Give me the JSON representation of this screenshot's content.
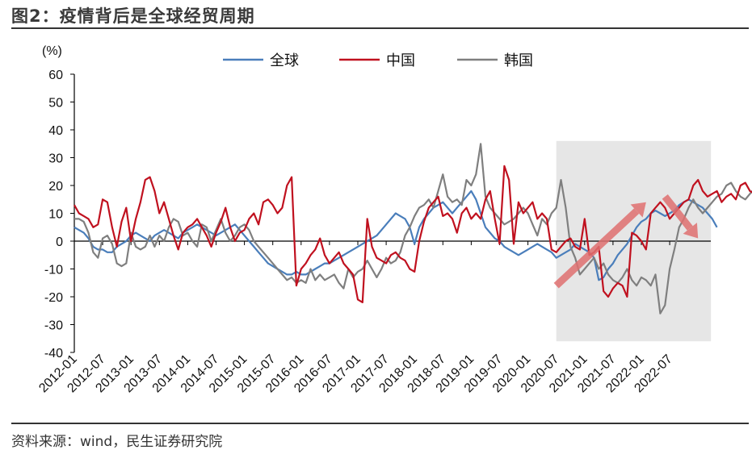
{
  "header": {
    "title": "图2：疫情背后是全球经贸周期"
  },
  "footer": {
    "source": "资料来源：wind，民生证券研究院"
  },
  "chart_data": {
    "type": "line",
    "title": "疫情背后是全球经贸周期",
    "ylabel": "(%)",
    "ylim": [
      -40,
      60
    ],
    "yticks": [
      60,
      50,
      40,
      30,
      20,
      10,
      0,
      -10,
      -20,
      -30,
      -40
    ],
    "xlabels": [
      "2012-01",
      "2012-07",
      "2013-01",
      "2013-07",
      "2014-01",
      "2014-07",
      "2015-01",
      "2015-07",
      "2016-01",
      "2016-07",
      "2017-01",
      "2017-07",
      "2018-01",
      "2018-07",
      "2019-01",
      "2019-07",
      "2020-01",
      "2020-07",
      "2021-01",
      "2021-07",
      "2022-01",
      "2022-07"
    ],
    "x_start_month": "2012-01",
    "legend": {
      "position": "top-center"
    },
    "highlight": {
      "x_from": 102,
      "x_to": 132,
      "y_from": -36,
      "y_to": 36
    },
    "arrows": [
      {
        "from": [
          102,
          -16
        ],
        "to": [
          121,
          14
        ],
        "color": "#e07070"
      },
      {
        "from": [
          125,
          16
        ],
        "to": [
          132,
          1
        ],
        "color": "#e07070"
      }
    ],
    "series": [
      {
        "name": "全球",
        "color": "#4a7ebb",
        "values": [
          5,
          4,
          3,
          1,
          -2,
          -3,
          -3,
          -4,
          -4,
          -2,
          -1,
          0,
          2,
          3,
          2,
          1,
          0,
          2,
          3,
          4,
          3,
          2,
          1,
          3,
          4,
          5,
          6,
          5,
          4,
          3,
          2,
          3,
          4,
          5,
          6,
          4,
          2,
          0,
          -2,
          -4,
          -6,
          -8,
          -9,
          -10,
          -11,
          -12,
          -12,
          -11,
          -12,
          -12,
          -11,
          -10,
          -9,
          -8,
          -8,
          -7,
          -6,
          -5,
          -4,
          -3,
          -2,
          -1,
          0,
          1,
          2,
          4,
          6,
          8,
          10,
          9,
          8,
          5,
          -1,
          5,
          8,
          10,
          12,
          13,
          14,
          12,
          10,
          12,
          14,
          16,
          18,
          15,
          10,
          5,
          3,
          1,
          0,
          -2,
          -3,
          -4,
          -5,
          -4,
          -3,
          -2,
          -1,
          -2,
          -3,
          -4,
          -6,
          -5,
          -4,
          -3,
          -1,
          -2,
          -3,
          -4,
          -6,
          -14,
          -13,
          -10,
          -8,
          -5,
          -3,
          -1,
          2,
          5,
          7,
          8,
          10,
          11,
          10,
          9,
          10,
          11,
          13,
          14,
          15,
          14,
          13,
          12,
          10,
          8,
          5
        ]
      },
      {
        "name": "中国",
        "color": "#c0111f",
        "values": [
          13,
          10,
          9,
          8,
          5,
          6,
          15,
          14,
          5,
          -2,
          7,
          12,
          0,
          8,
          14,
          22,
          23,
          18,
          10,
          14,
          8,
          2,
          -3,
          3,
          5,
          6,
          8,
          5,
          2,
          -2,
          3,
          7,
          12,
          5,
          0,
          3,
          4,
          8,
          10,
          6,
          14,
          15,
          13,
          10,
          12,
          20,
          23,
          -16,
          -10,
          -8,
          -5,
          -3,
          1,
          -5,
          -8,
          -6,
          -4,
          -8,
          -10,
          -12,
          -21,
          -22,
          8,
          -2,
          -6,
          -7,
          -8,
          -5,
          -4,
          -6,
          -7,
          -10,
          -11,
          0,
          7,
          12,
          14,
          16,
          9,
          10,
          8,
          3,
          10,
          12,
          8,
          10,
          8,
          15,
          18,
          8,
          -1,
          27,
          22,
          -1,
          14,
          10,
          12,
          14,
          8,
          10,
          8,
          -3,
          -4,
          -2,
          0,
          1,
          -2,
          -3,
          8,
          -5,
          -4,
          -2,
          -18,
          -20,
          -17,
          -15,
          -16,
          -20,
          3,
          2,
          0,
          -3,
          10,
          12,
          14,
          12,
          8,
          10,
          12,
          14,
          15,
          20,
          22,
          18,
          16,
          17,
          18,
          14,
          16,
          17,
          15,
          20,
          21,
          18,
          17,
          16,
          18,
          17,
          14
        ]
      },
      {
        "name": "韩国",
        "color": "#7f7f7f",
        "values": [
          8,
          8,
          7,
          3,
          -4,
          -6,
          1,
          2,
          -1,
          -8,
          -9,
          -8,
          3,
          -2,
          -3,
          -2,
          2,
          -2,
          2,
          0,
          5,
          8,
          7,
          2,
          3,
          0,
          -2,
          6,
          5,
          0,
          4,
          8,
          3,
          0,
          2,
          5,
          6,
          4,
          0,
          -2,
          -4,
          -6,
          -8,
          -10,
          -12,
          -14,
          -13,
          -15,
          -14,
          -15,
          -10,
          -14,
          -12,
          -14,
          -13,
          -12,
          -15,
          -17,
          -10,
          -13,
          -11,
          -10,
          -7,
          -10,
          -13,
          -10,
          -6,
          -8,
          -7,
          -4,
          2,
          5,
          9,
          12,
          13,
          15,
          12,
          18,
          24,
          16,
          14,
          15,
          13,
          22,
          20,
          24,
          35,
          16,
          12,
          10,
          8,
          6,
          7,
          8,
          10,
          12,
          10,
          6,
          2,
          8,
          6,
          10,
          12,
          22,
          12,
          -2,
          -6,
          -12,
          -10,
          -8,
          -6,
          -10,
          -8,
          -12,
          -14,
          -15,
          -13,
          -10,
          -14,
          -16,
          -13,
          -14,
          -16,
          -12,
          -26,
          -23,
          -10,
          -3,
          5,
          8,
          12,
          15,
          12,
          10,
          12,
          14,
          16,
          17,
          20,
          21,
          18,
          16,
          15,
          17,
          19,
          22,
          18,
          13,
          5,
          -7
        ]
      }
    ]
  }
}
